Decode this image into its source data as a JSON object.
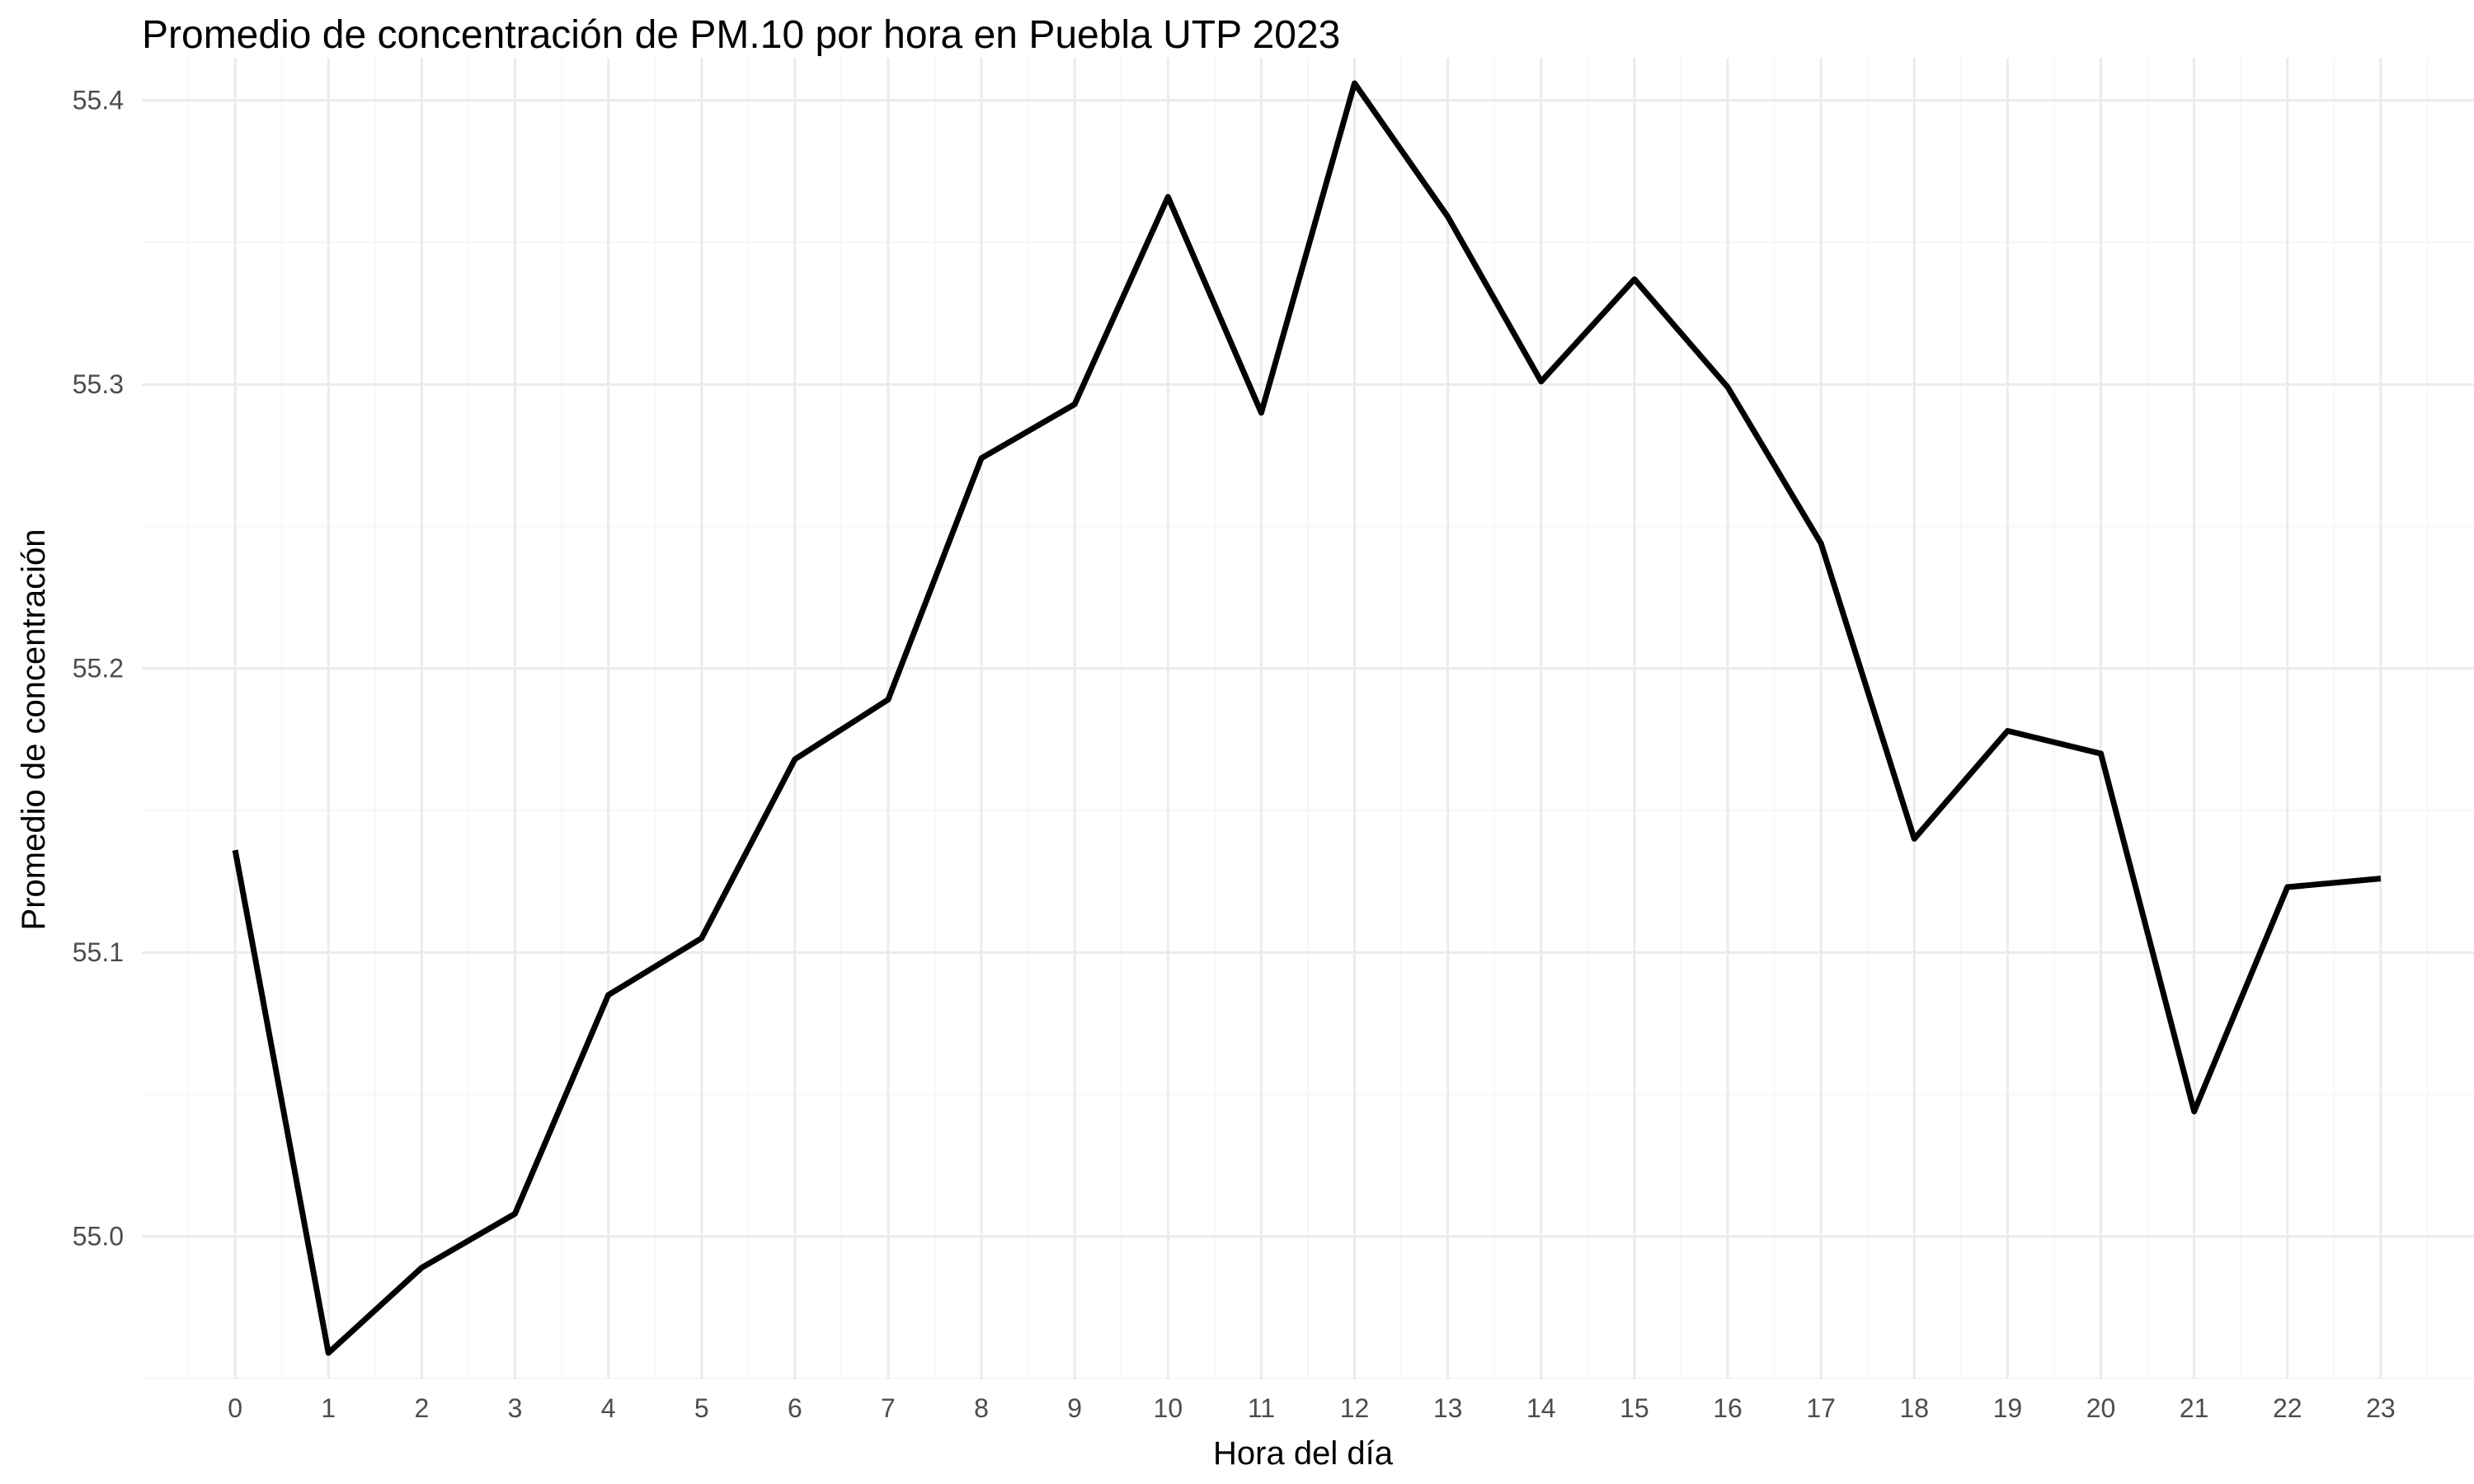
{
  "chart_data": {
    "type": "line",
    "title": "Promedio de concentración de PM.10 por hora en Puebla UTP 2023",
    "xlabel": "Hora del día",
    "ylabel": "Promedio de concentración",
    "x": [
      0,
      1,
      2,
      3,
      4,
      5,
      6,
      7,
      8,
      9,
      10,
      11,
      12,
      13,
      14,
      15,
      16,
      17,
      18,
      19,
      20,
      21,
      22,
      23
    ],
    "x_tick_labels": [
      "0",
      "1",
      "2",
      "3",
      "4",
      "5",
      "6",
      "7",
      "8",
      "9",
      "10",
      "11",
      "12",
      "13",
      "14",
      "15",
      "16",
      "17",
      "18",
      "19",
      "20",
      "21",
      "22",
      "23"
    ],
    "series": [
      {
        "values": [
          55.136,
          54.959,
          54.989,
          55.008,
          55.085,
          55.105,
          55.168,
          55.189,
          55.274,
          55.293,
          55.366,
          55.29,
          55.406,
          55.359,
          55.301,
          55.337,
          55.299,
          55.244,
          55.14,
          55.178,
          55.17,
          55.044,
          55.123,
          55.126
        ],
        "color": "#000000"
      }
    ],
    "y_ticks": [
      55.0,
      55.1,
      55.2,
      55.3,
      55.4
    ],
    "y_tick_labels": [
      "55.0",
      "55.1",
      "55.2",
      "55.3",
      "55.4"
    ],
    "xlim": [
      -1,
      24
    ],
    "ylim": [
      54.95,
      55.415
    ],
    "grid": true,
    "legend": "none"
  }
}
